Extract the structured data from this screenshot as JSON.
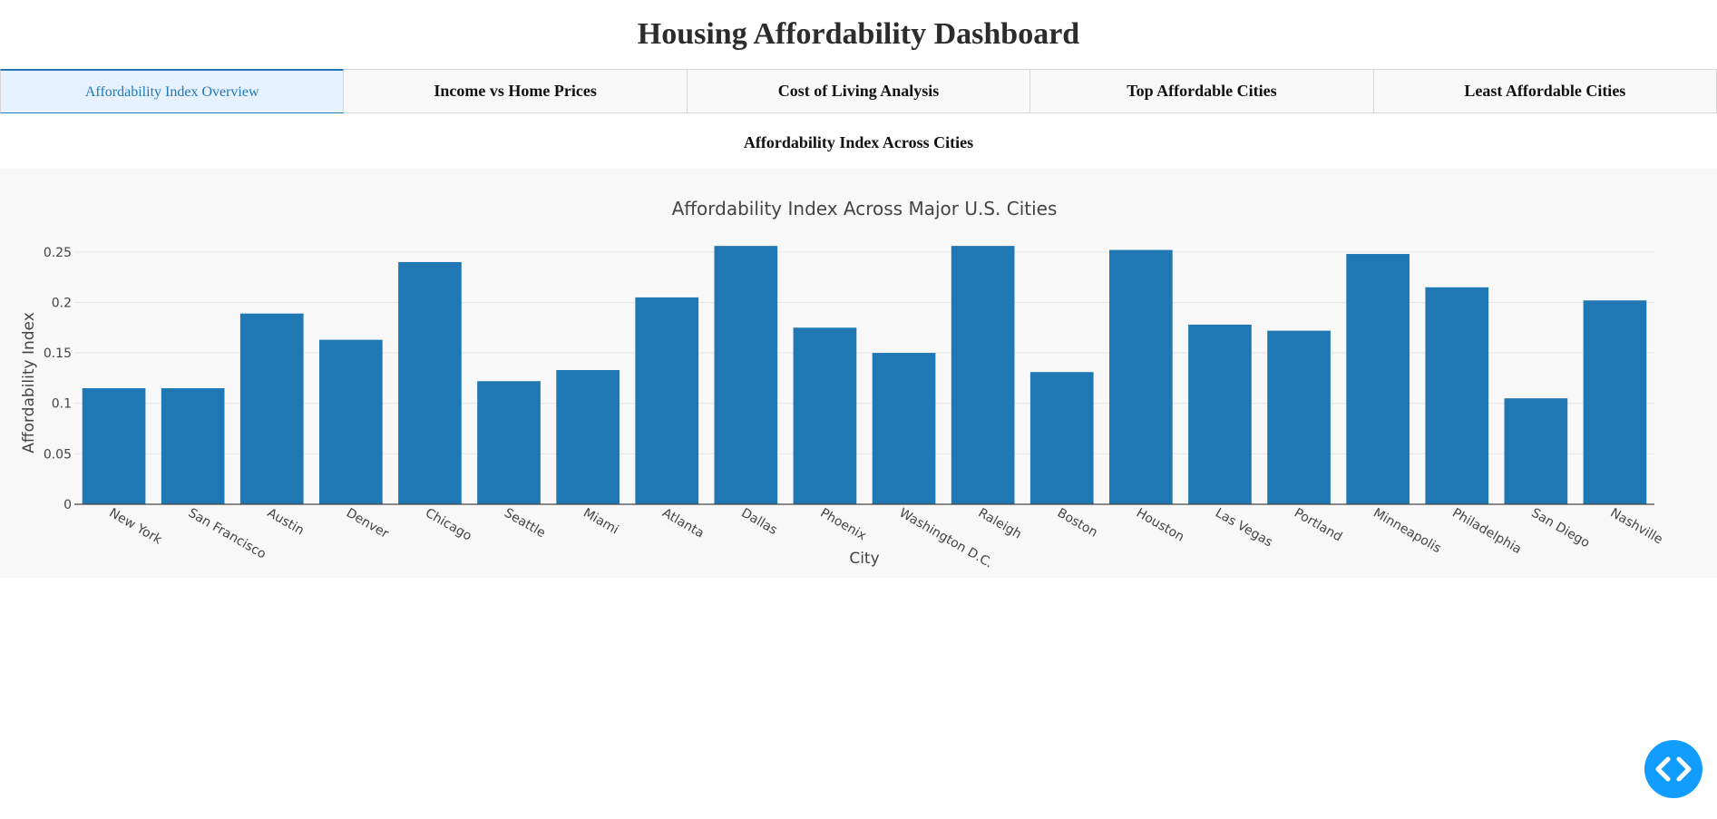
{
  "page": {
    "title": "Housing Affordability Dashboard"
  },
  "tabs": [
    {
      "label": "Affordability Index Overview",
      "selected": true
    },
    {
      "label": "Income vs Home Prices",
      "selected": false
    },
    {
      "label": "Cost of Living Analysis",
      "selected": false
    },
    {
      "label": "Top Affordable Cities",
      "selected": false
    },
    {
      "label": "Least Affordable Cities",
      "selected": false
    }
  ],
  "section": {
    "heading": "Affordability Index Across Cities"
  },
  "colors": {
    "bar": "#1f77b4",
    "selected_tab_bg": "#e6f2ff",
    "fab": "#119dff"
  },
  "fab": {
    "icon": "code-brackets-icon"
  },
  "chart_data": {
    "type": "bar",
    "title": "Affordability Index Across Major U.S. Cities",
    "xlabel": "City",
    "ylabel": "Affordability Index",
    "categories": [
      "New York",
      "San Francisco",
      "Austin",
      "Denver",
      "Chicago",
      "Seattle",
      "Miami",
      "Atlanta",
      "Dallas",
      "Phoenix",
      "Washington D.C.",
      "Raleigh",
      "Boston",
      "Houston",
      "Las Vegas",
      "Portland",
      "Minneapolis",
      "Philadelphia",
      "San Diego",
      "Nashville"
    ],
    "values": [
      0.115,
      0.115,
      0.189,
      0.163,
      0.24,
      0.122,
      0.133,
      0.205,
      0.256,
      0.175,
      0.15,
      0.256,
      0.131,
      0.252,
      0.178,
      0.172,
      0.248,
      0.215,
      0.105,
      0.202
    ],
    "ylim": [
      0,
      0.275
    ],
    "yticks": [
      0,
      0.05,
      0.1,
      0.15,
      0.2,
      0.25
    ],
    "ytick_labels": [
      "0",
      "0.05",
      "0.1",
      "0.15",
      "0.2",
      "0.25"
    ],
    "grid": true,
    "legend": "none"
  }
}
